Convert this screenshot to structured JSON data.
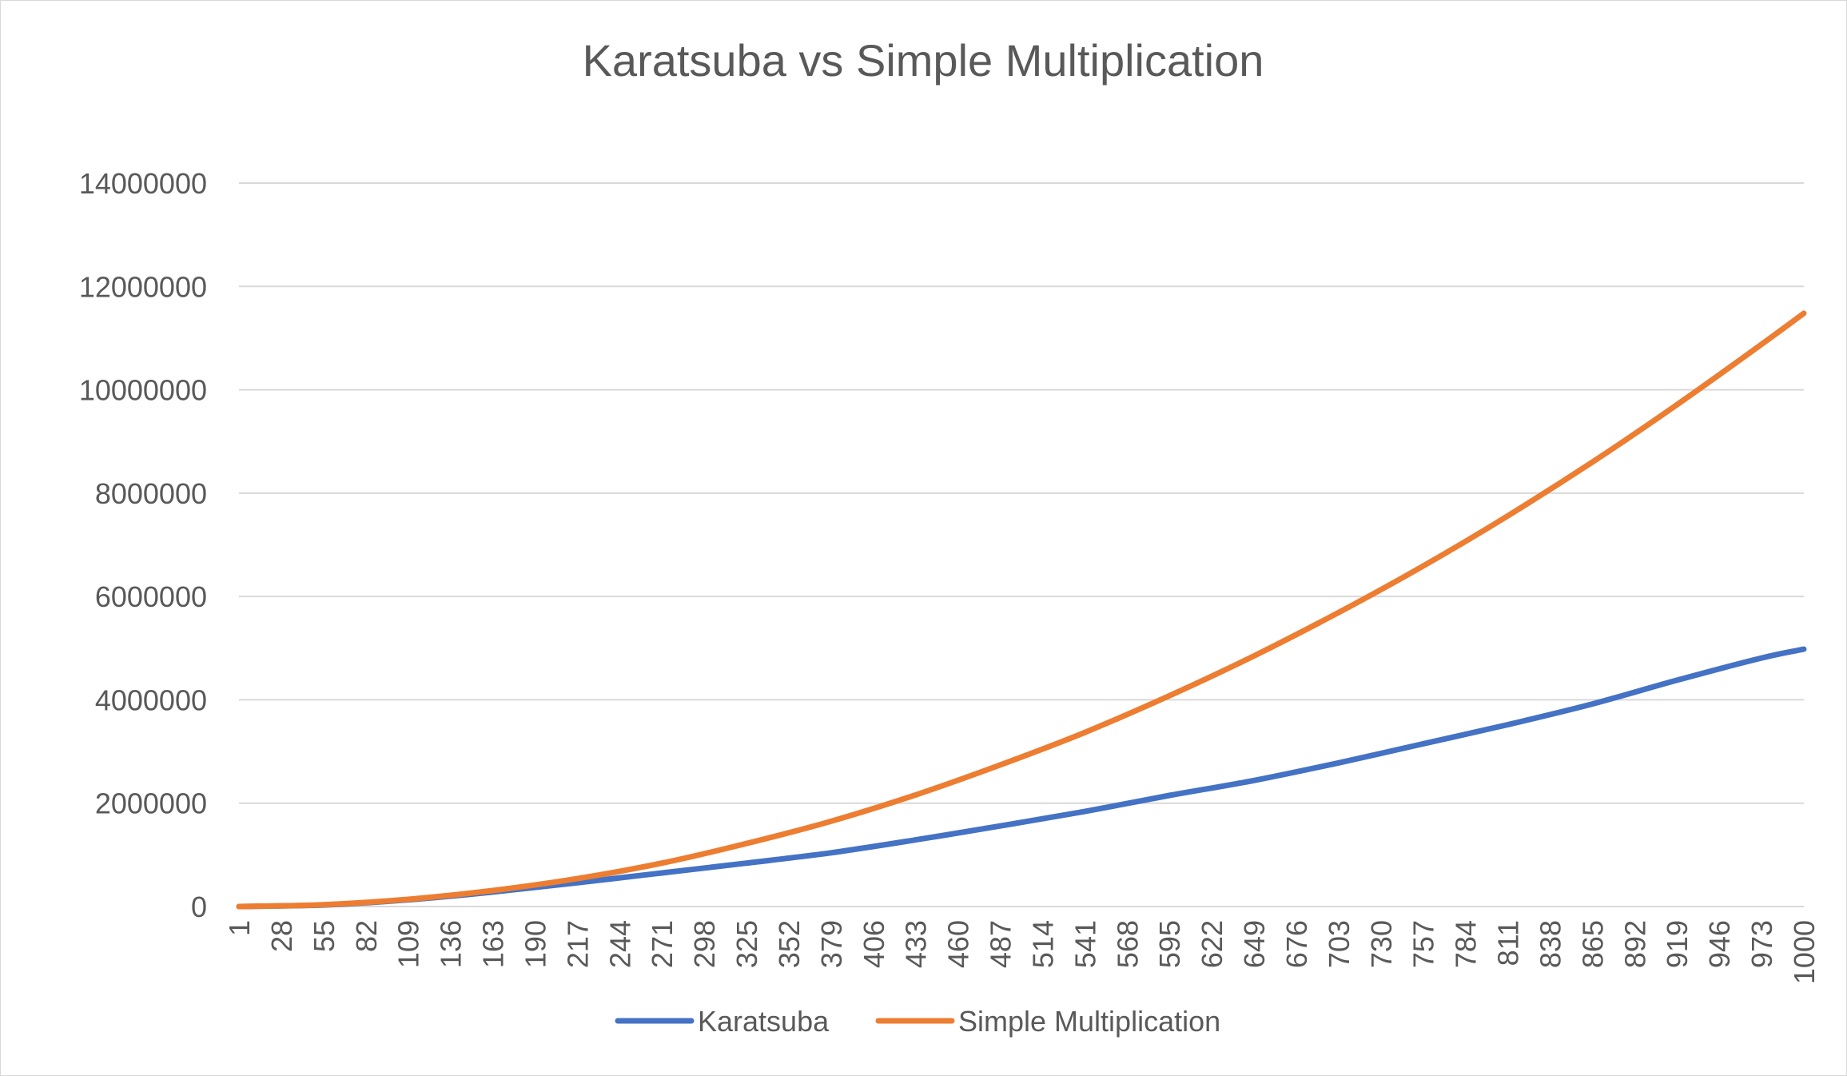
{
  "chart_data": {
    "type": "line",
    "title": "Karatsuba vs Simple Multiplication",
    "xlabel": "",
    "ylabel": "",
    "x_tick_labels": [
      "1",
      "28",
      "55",
      "82",
      "109",
      "136",
      "163",
      "190",
      "217",
      "244",
      "271",
      "298",
      "325",
      "352",
      "379",
      "406",
      "433",
      "460",
      "487",
      "514",
      "541",
      "568",
      "595",
      "622",
      "649",
      "676",
      "703",
      "730",
      "757",
      "784",
      "811",
      "838",
      "865",
      "892",
      "919",
      "946",
      "973",
      "1000"
    ],
    "x_range": [
      1,
      1000
    ],
    "y_tick_labels": [
      "0",
      "2000000",
      "4000000",
      "6000000",
      "8000000",
      "10000000",
      "12000000",
      "14000000"
    ],
    "ylim": [
      0,
      14000000
    ],
    "grid": "horizontal",
    "legend_position": "bottom",
    "series": [
      {
        "name": "Karatsuba",
        "color": "#4472C4",
        "x": [
          1,
          55,
          109,
          163,
          217,
          271,
          325,
          379,
          433,
          487,
          541,
          595,
          649,
          703,
          757,
          811,
          865,
          919,
          973,
          1000
        ],
        "values": [
          0,
          30000,
          130000,
          280000,
          460000,
          650000,
          840000,
          1040000,
          1290000,
          1560000,
          1840000,
          2150000,
          2440000,
          2780000,
          3150000,
          3520000,
          3920000,
          4380000,
          4810000,
          4980000
        ]
      },
      {
        "name": "Simple Multiplication",
        "color": "#ED7D31",
        "x": [
          1,
          55,
          109,
          163,
          217,
          271,
          325,
          379,
          433,
          487,
          541,
          595,
          649,
          703,
          757,
          811,
          865,
          919,
          973,
          1000
        ],
        "values": [
          0,
          35000,
          140000,
          310000,
          540000,
          840000,
          1220000,
          1650000,
          2160000,
          2740000,
          3370000,
          4080000,
          4850000,
          5690000,
          6590000,
          7560000,
          8600000,
          9710000,
          10880000,
          11480000
        ]
      }
    ]
  }
}
